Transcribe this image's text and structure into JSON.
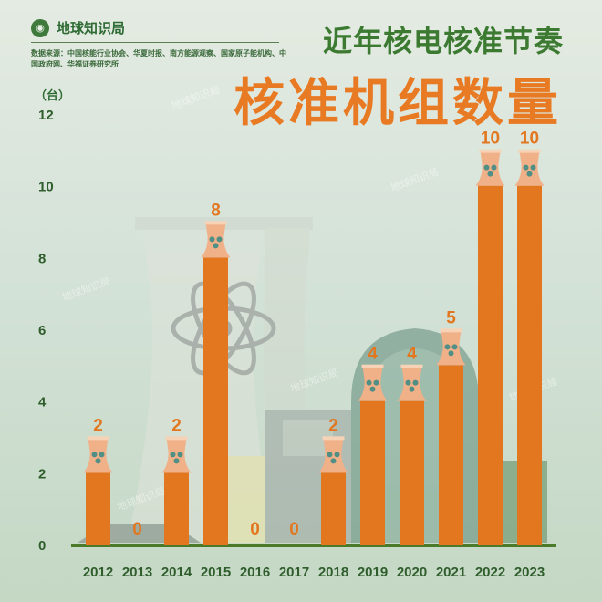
{
  "brand": {
    "name": "地球知识局",
    "logo_icon": "globe-icon"
  },
  "source_text": "数据来源：中国核能行业协会、华夏时报、南方能源观察、国家原子能机构、中国政府网、华福证券研究所",
  "title_line1": "近年核电核准节奏",
  "title_line2": "核准机组数量",
  "unit_label": "（台）",
  "watermark": "地球知识局",
  "colors": {
    "bar": "#e2771f",
    "axis": "#4a7a2a",
    "title_green": "#3b7a30",
    "title_orange": "#e87a24",
    "cap": "#f0b088"
  },
  "chart_data": {
    "type": "bar",
    "categories": [
      "2012",
      "2013",
      "2014",
      "2015",
      "2016",
      "2017",
      "2018",
      "2019",
      "2020",
      "2021",
      "2022",
      "2023"
    ],
    "values": [
      2,
      0,
      2,
      8,
      0,
      0,
      2,
      4,
      4,
      5,
      10,
      10
    ],
    "ylim": [
      0,
      12
    ],
    "yticks": [
      0,
      2,
      4,
      6,
      8,
      10,
      12
    ],
    "ylabel": "（台）",
    "xlabel": "",
    "grid": false,
    "data_labels": true
  }
}
